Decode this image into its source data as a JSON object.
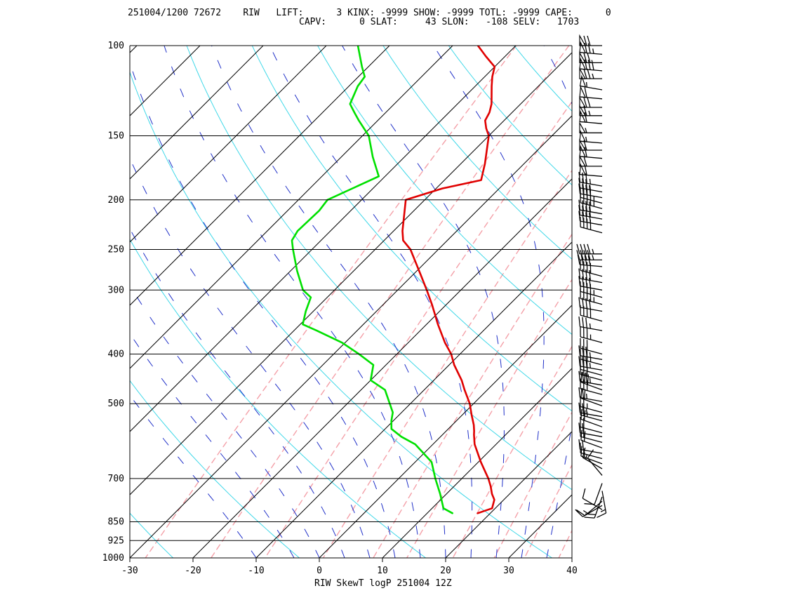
{
  "header": {
    "line1": "251004/1200 72672    RIW   LIFT:      3 KINX: -9999 SHOW: -9999 TOTL: -9999 CAPE:      0",
    "line2": "CAPV:      0 SLAT:     43 SLON:   -108 SELV:   1703"
  },
  "chart_data": {
    "type": "line",
    "title": "RIW SkewT logP 251004 12Z",
    "xlabel": "",
    "ylabel": "",
    "xlim": [
      -30,
      40
    ],
    "ylim": [
      1000,
      100
    ],
    "yscale": "log",
    "skew": "45 degree skewed isotherms",
    "x_ticks": [
      "-30",
      "-20",
      "-10",
      "0",
      "10",
      "20",
      "30",
      "40"
    ],
    "p_ticks": [
      "100",
      "150",
      "200",
      "250",
      "300",
      "400",
      "500",
      "700",
      "850",
      "925",
      "1000"
    ],
    "grid": true,
    "series": [
      {
        "name": "",
        "kind": "temperature",
        "color": "#e00000",
        "points": [
          [
            818,
            18.0
          ],
          [
            800,
            19.5
          ],
          [
            770,
            18.5
          ],
          [
            750,
            17.2
          ],
          [
            725,
            15.8
          ],
          [
            700,
            14.2
          ],
          [
            650,
            10.4
          ],
          [
            600,
            6.6
          ],
          [
            575,
            5.0
          ],
          [
            565,
            4.4
          ],
          [
            550,
            3.4
          ],
          [
            525,
            1.4
          ],
          [
            500,
            -0.6
          ],
          [
            470,
            -3.6
          ],
          [
            450,
            -5.6
          ],
          [
            420,
            -9.2
          ],
          [
            400,
            -11.4
          ],
          [
            380,
            -14.2
          ],
          [
            350,
            -18.2
          ],
          [
            320,
            -22.3
          ],
          [
            300,
            -25.4
          ],
          [
            280,
            -28.8
          ],
          [
            250,
            -34.4
          ],
          [
            240,
            -37.0
          ],
          [
            230,
            -38.6
          ],
          [
            200,
            -43.0
          ],
          [
            190,
            -39.0
          ],
          [
            183,
            -34.2
          ],
          [
            170,
            -36.2
          ],
          [
            150,
            -40.0
          ],
          [
            145,
            -41.6
          ],
          [
            140,
            -43.0
          ],
          [
            135,
            -43.6
          ],
          [
            130,
            -44.6
          ],
          [
            120,
            -47.4
          ],
          [
            115,
            -48.8
          ],
          [
            110,
            -50.0
          ],
          [
            105,
            -53.0
          ],
          [
            100,
            -56.0
          ]
        ]
      },
      {
        "name": "",
        "kind": "dewpoint",
        "color": "#00e000",
        "points": [
          [
            818,
            14.0
          ],
          [
            800,
            11.8
          ],
          [
            750,
            9.0
          ],
          [
            700,
            5.8
          ],
          [
            650,
            2.6
          ],
          [
            600,
            -2.8
          ],
          [
            580,
            -6.2
          ],
          [
            560,
            -9.0
          ],
          [
            540,
            -10.3
          ],
          [
            520,
            -11.4
          ],
          [
            470,
            -16.2
          ],
          [
            450,
            -20.0
          ],
          [
            420,
            -22.0
          ],
          [
            400,
            -26.0
          ],
          [
            380,
            -30.5
          ],
          [
            360,
            -36.4
          ],
          [
            350,
            -39.6
          ],
          [
            330,
            -41.2
          ],
          [
            310,
            -42.6
          ],
          [
            300,
            -45.0
          ],
          [
            275,
            -49.0
          ],
          [
            250,
            -53.0
          ],
          [
            240,
            -54.6
          ],
          [
            230,
            -55.2
          ],
          [
            210,
            -55.0
          ],
          [
            200,
            -55.4
          ],
          [
            180,
            -51.0
          ],
          [
            165,
            -55.0
          ],
          [
            150,
            -59.0
          ],
          [
            140,
            -63.0
          ],
          [
            135,
            -65.0
          ],
          [
            130,
            -67.0
          ],
          [
            120,
            -68.6
          ],
          [
            115,
            -69.0
          ],
          [
            110,
            -71.0
          ],
          [
            100,
            -75.0
          ]
        ]
      }
    ],
    "wind_barbs": [
      [
        100,
        270,
        70
      ],
      [
        104,
        275,
        75
      ],
      [
        108,
        270,
        70
      ],
      [
        112,
        275,
        80
      ],
      [
        116,
        270,
        75
      ],
      [
        122,
        280,
        55
      ],
      [
        127,
        275,
        60
      ],
      [
        132,
        270,
        70
      ],
      [
        137,
        270,
        65
      ],
      [
        142,
        275,
        60
      ],
      [
        148,
        270,
        55
      ],
      [
        155,
        275,
        55
      ],
      [
        160,
        270,
        60
      ],
      [
        166,
        275,
        60
      ],
      [
        172,
        270,
        60
      ],
      [
        180,
        275,
        60
      ],
      [
        188,
        280,
        35
      ],
      [
        193,
        280,
        35
      ],
      [
        198,
        280,
        40
      ],
      [
        203,
        285,
        45
      ],
      [
        208,
        285,
        45
      ],
      [
        213,
        280,
        40
      ],
      [
        218,
        280,
        40
      ],
      [
        224,
        280,
        40
      ],
      [
        232,
        285,
        40
      ],
      [
        255,
        270,
        45
      ],
      [
        262,
        270,
        45
      ],
      [
        270,
        275,
        40
      ],
      [
        282,
        285,
        40
      ],
      [
        290,
        280,
        40
      ],
      [
        300,
        280,
        40
      ],
      [
        310,
        285,
        45
      ],
      [
        320,
        285,
        45
      ],
      [
        330,
        280,
        40
      ],
      [
        345,
        285,
        40
      ],
      [
        360,
        280,
        35
      ],
      [
        380,
        285,
        35
      ],
      [
        400,
        285,
        30
      ],
      [
        410,
        280,
        35
      ],
      [
        420,
        285,
        35
      ],
      [
        430,
        280,
        35
      ],
      [
        440,
        285,
        30
      ],
      [
        450,
        285,
        30
      ],
      [
        460,
        280,
        35
      ],
      [
        470,
        290,
        30
      ],
      [
        480,
        285,
        30
      ],
      [
        495,
        280,
        25
      ],
      [
        505,
        290,
        20
      ],
      [
        520,
        285,
        25
      ],
      [
        530,
        280,
        25
      ],
      [
        540,
        285,
        25
      ],
      [
        555,
        290,
        20
      ],
      [
        570,
        285,
        20
      ],
      [
        580,
        280,
        20
      ],
      [
        595,
        285,
        20
      ],
      [
        610,
        290,
        20
      ],
      [
        625,
        280,
        20
      ],
      [
        640,
        285,
        15
      ],
      [
        655,
        290,
        15
      ],
      [
        670,
        300,
        15
      ],
      [
        690,
        320,
        10
      ],
      [
        715,
        200,
        10
      ],
      [
        740,
        170,
        15
      ],
      [
        760,
        200,
        20
      ],
      [
        775,
        230,
        15
      ],
      [
        790,
        240,
        10
      ],
      [
        805,
        300,
        10
      ]
    ]
  }
}
